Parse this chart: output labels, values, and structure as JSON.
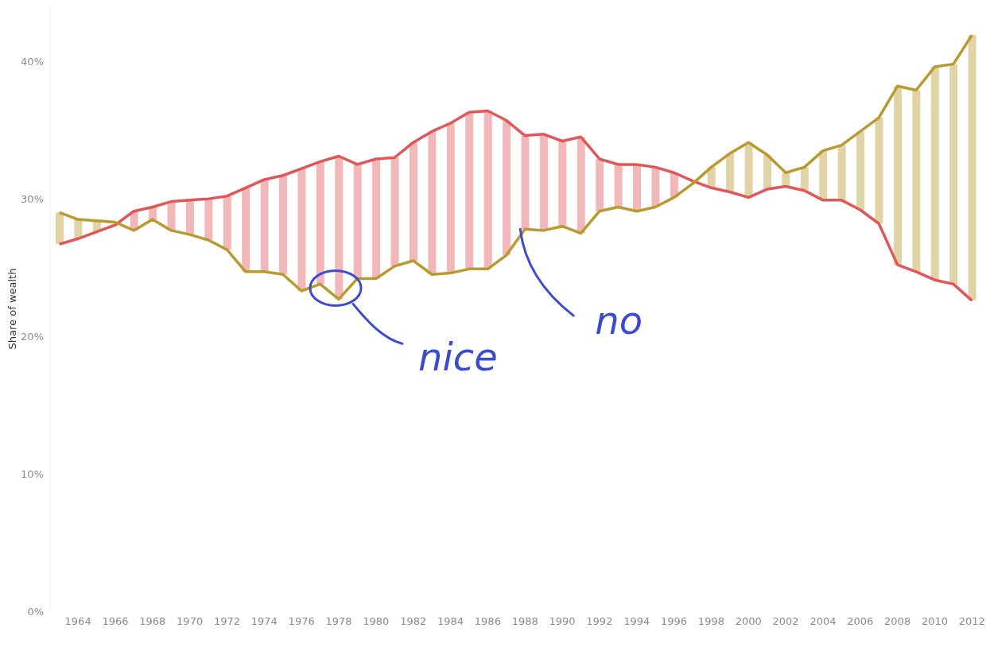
{
  "chart_data": {
    "type": "line",
    "ylabel": "Share of wealth",
    "categories": [
      null,
      "1964",
      null,
      "1966",
      null,
      "1968",
      null,
      "1970",
      null,
      "1972",
      null,
      "1974",
      null,
      "1976",
      null,
      "1978",
      null,
      "1980",
      null,
      "1982",
      null,
      "1984",
      null,
      "1986",
      null,
      "1988",
      null,
      "1990",
      null,
      "1992",
      null,
      "1994",
      null,
      "1996",
      null,
      "1998",
      null,
      "2000",
      null,
      "2002",
      null,
      "2004",
      null,
      "2006",
      null,
      "2008",
      null,
      "2010",
      null,
      "2012"
    ],
    "ylim": [
      0,
      44
    ],
    "yticks": [
      {
        "value": 0,
        "label": "0%"
      },
      {
        "value": 10,
        "label": "10%"
      },
      {
        "value": 20,
        "label": "20%"
      },
      {
        "value": 30,
        "label": "30%"
      },
      {
        "value": 40,
        "label": "40%"
      }
    ],
    "annotations": [
      {
        "text": "nice",
        "x": "1978",
        "y": 22.7
      },
      {
        "text": "no",
        "x": "1988",
        "y": 27.8
      }
    ],
    "series": [
      {
        "type": "bar",
        "colors": [
          "#e0d3a5",
          "#e0d3a5",
          "#e0d3a5",
          "#e0d3a5",
          "#f2b8b9",
          "#f2b8b9",
          "#f2b8b9",
          "#f2b8b9",
          "#f2b8b9",
          "#f2b8b9",
          "#f2b8b9",
          "#f2b8b9",
          "#f2b8b9",
          "#f2b8b9",
          "#f2b8b9",
          "#f2b8b9",
          "#f2b8b9",
          "#f2b8b9",
          "#f2b8b9",
          "#f2b8b9",
          "#f2b8b9",
          "#f2b8b9",
          "#f2b8b9",
          "#f2b8b9",
          "#f2b8b9",
          "#f2b8b9",
          "#f2b8b9",
          "#f2b8b9",
          "#f2b8b9",
          "#f2b8b9",
          "#f2b8b9",
          "#f2b8b9",
          "#f2b8b9",
          "#f2b8b9",
          "#f2b8b9",
          "#e0d3a5",
          "#e0d3a5",
          "#e0d3a5",
          "#e0d3a5",
          "#e0d3a5",
          "#e0d3a5",
          "#e0d3a5",
          "#e0d3a5",
          "#e0d3a5",
          "#e0d3a5",
          "#e0d3a5",
          "#e0d3a5",
          "#e0d3a5",
          "#e0d3a5",
          "#e0d3a5"
        ],
        "base": [
          26.7,
          27.1,
          27.6,
          null,
          27.7,
          28.5,
          27.7,
          27.4,
          27.0,
          26.3,
          24.7,
          24.7,
          24.5,
          23.3,
          23.8,
          22.7,
          24.2,
          24.2,
          25.1,
          25.5,
          24.5,
          24.6,
          24.9,
          24.9,
          25.9,
          27.8,
          27.7,
          28.0,
          27.5,
          29.1,
          29.4,
          29.1,
          29.4,
          30.1,
          null,
          30.8,
          30.5,
          30.1,
          30.7,
          30.9,
          30.6,
          29.9,
          29.9,
          29.2,
          28.2,
          25.2,
          24.7,
          24.1,
          23.8,
          22.6
        ],
        "values": [
          2.3,
          1.4,
          0.8,
          null,
          1.4,
          0.9,
          2.1,
          2.5,
          3.0,
          3.9,
          6.1,
          6.7,
          7.2,
          8.9,
          8.9,
          10.4,
          8.3,
          8.7,
          7.9,
          8.6,
          10.4,
          10.9,
          11.4,
          11.5,
          9.8,
          6.8,
          7.0,
          6.2,
          7.0,
          3.8,
          3.1,
          3.4,
          2.9,
          1.8,
          null,
          1.5,
          2.8,
          4.0,
          2.5,
          1.0,
          1.7,
          3.6,
          4.0,
          5.7,
          7.7,
          13.0,
          13.2,
          15.5,
          16.0,
          19.3
        ]
      },
      {
        "color": "#e15759",
        "values": [
          26.7,
          27.1,
          27.6,
          28.1,
          29.1,
          29.4,
          29.8,
          29.9,
          30.0,
          30.2,
          30.8,
          31.4,
          31.7,
          32.2,
          32.7,
          33.1,
          32.5,
          32.9,
          33.0,
          34.1,
          34.9,
          35.5,
          36.3,
          36.4,
          35.7,
          34.6,
          34.7,
          34.2,
          34.5,
          32.9,
          32.5,
          32.5,
          32.3,
          31.9,
          31.3,
          30.8,
          30.5,
          30.1,
          30.7,
          30.9,
          30.6,
          29.9,
          29.9,
          29.2,
          28.2,
          25.2,
          24.7,
          24.1,
          23.8,
          22.6
        ]
      },
      {
        "color": "#b89a2e",
        "values": [
          29.0,
          28.5,
          28.4,
          28.3,
          27.7,
          28.5,
          27.7,
          27.4,
          27.0,
          26.3,
          24.7,
          24.7,
          24.5,
          23.3,
          23.8,
          22.7,
          24.2,
          24.2,
          25.1,
          25.5,
          24.5,
          24.6,
          24.9,
          24.9,
          25.9,
          27.8,
          27.7,
          28.0,
          27.5,
          29.1,
          29.4,
          29.1,
          29.4,
          30.1,
          31.1,
          32.3,
          33.3,
          34.1,
          33.2,
          31.9,
          32.3,
          33.5,
          33.9,
          34.9,
          35.9,
          38.2,
          37.9,
          39.6,
          39.8,
          41.9
        ]
      }
    ]
  }
}
